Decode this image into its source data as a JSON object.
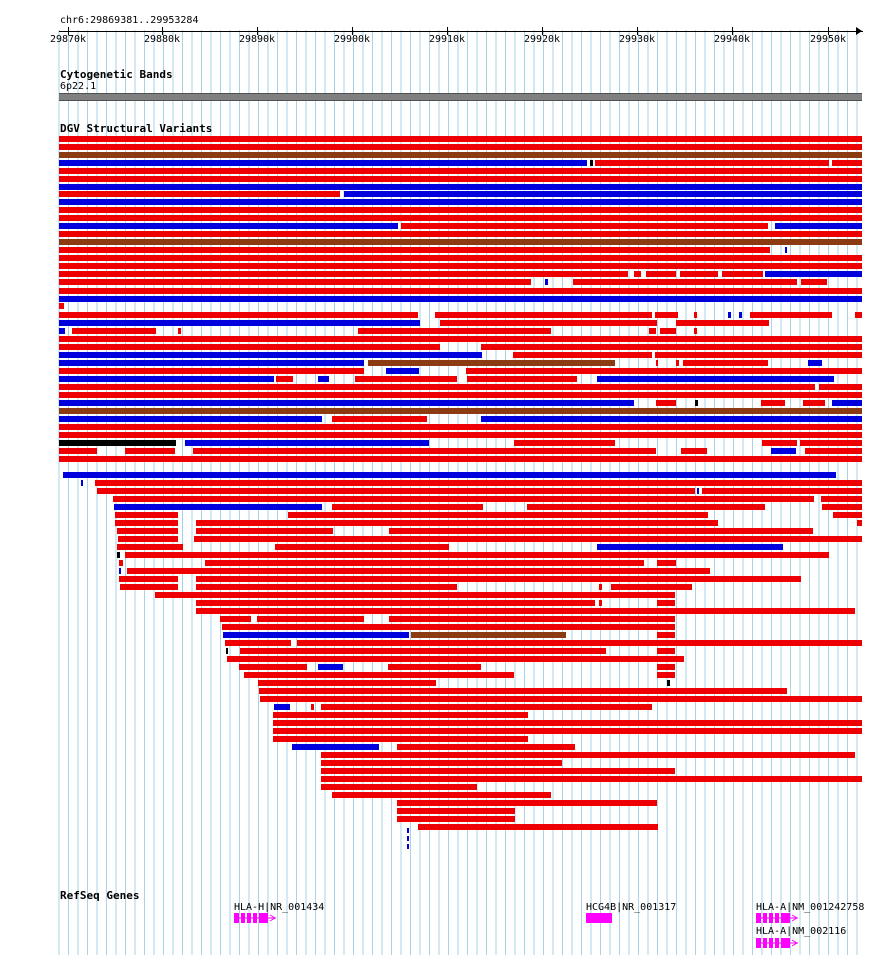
{
  "position": "chr6:29869381..29953284",
  "ruler": {
    "ticks": [
      "29870k",
      "29880k",
      "29890k",
      "29900k",
      "29910k",
      "29920k",
      "29930k",
      "29940k",
      "29950k"
    ]
  },
  "tracks": {
    "cytoband": {
      "title": "Cytogenetic Bands",
      "band_label": "6p22.1"
    },
    "dgv": {
      "title": "DGV Structural Variants"
    },
    "refseq": {
      "title": "RefSeq Genes",
      "genes": [
        {
          "label": "HLA-H|NR_001434"
        },
        {
          "label": "HCG4B|NR_001317"
        },
        {
          "label": "HLA-A|NM_001242758"
        },
        {
          "label": "HLA-A|NM_002116"
        }
      ]
    }
  },
  "colors": {
    "gridline": "#aad4e6",
    "loss": "#ee0000",
    "gain": "#0000dd",
    "gain_loss": "#8b3a12",
    "complex": "#000000",
    "cytoband": "#808080",
    "gene": "#ff00ff"
  }
}
